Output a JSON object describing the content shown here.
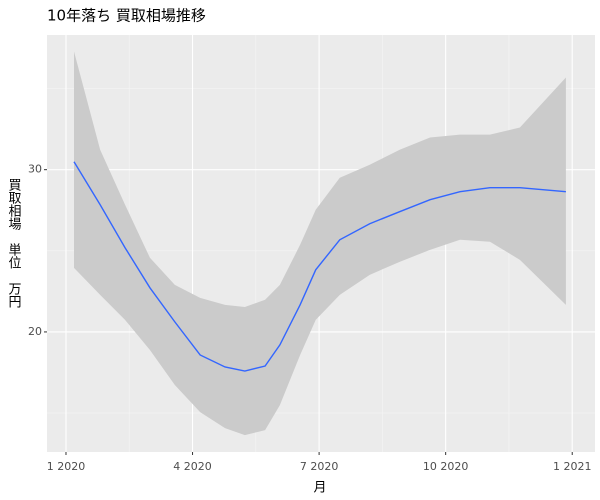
{
  "chart_data": {
    "type": "line",
    "title": "10年落ち 買取相場推移",
    "x_label": "月",
    "y_label": "買取相場　単位　万円",
    "x": [
      0.19,
      0.81,
      1.4,
      1.99,
      2.58,
      3.18,
      3.77,
      4.24,
      4.72,
      5.07,
      5.55,
      5.92,
      6.49,
      7.2,
      7.91,
      8.63,
      9.34,
      10.05,
      10.76,
      11.85
    ],
    "series": [
      {
        "color": "#3366ff",
        "values": [
          30.49,
          27.84,
          25.19,
          22.72,
          20.62,
          18.58,
          17.84,
          17.59,
          17.9,
          19.2,
          21.67,
          23.83,
          25.68,
          26.67,
          27.41,
          28.15,
          28.64,
          28.89,
          28.89,
          28.64
        ]
      }
    ],
    "band": {
      "color": "#cbcbcb",
      "lower": [
        23.95,
        22.28,
        20.74,
        18.89,
        16.73,
        15.06,
        14.07,
        13.64,
        13.95,
        15.49,
        18.58,
        20.74,
        22.28,
        23.52,
        24.32,
        25.06,
        25.68,
        25.56,
        24.44,
        21.67
      ],
      "upper": [
        37.28,
        31.23,
        27.84,
        24.57,
        22.9,
        22.1,
        21.67,
        21.54,
        21.98,
        22.9,
        25.37,
        27.53,
        29.5,
        30.3,
        31.23,
        31.98,
        32.16,
        32.16,
        32.6,
        35.68
      ]
    },
    "xlim": [
      -0.45,
      12.54
    ],
    "xticks": [
      {
        "value": 0,
        "label": "1 2020"
      },
      {
        "value": 3,
        "label": "4 2020"
      },
      {
        "value": 6,
        "label": "7 2020"
      },
      {
        "value": 9,
        "label": "10 2020"
      },
      {
        "value": 12,
        "label": "1 2021"
      }
    ],
    "xminor": [
      1.5,
      4.5,
      7.5,
      10.5
    ],
    "ylim": [
      12.6,
      38.3
    ],
    "yticks": [
      20,
      30
    ],
    "yminor": [
      15,
      25,
      35
    ],
    "grid": true
  }
}
